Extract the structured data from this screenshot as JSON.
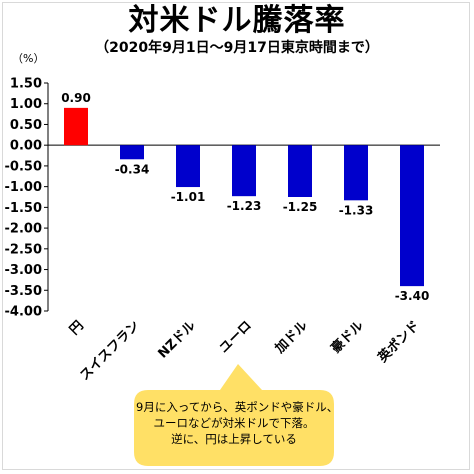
{
  "chart_data": {
    "type": "bar",
    "title": "対米ドル騰落率",
    "subtitle": "（2020年9月1日～9月17日東京時間まで）",
    "ylabel": "（%）",
    "xlabel": "",
    "ylim": [
      -4.0,
      1.5
    ],
    "yticks": [
      1.5,
      1.0,
      0.5,
      0.0,
      -0.5,
      -1.0,
      -1.5,
      -2.0,
      -2.5,
      -3.0,
      -3.5,
      -4.0
    ],
    "ytick_labels": [
      "1.50",
      "1.00",
      "0.50",
      "0.00",
      "-0.50",
      "-1.00",
      "-1.50",
      "-2.00",
      "-2.50",
      "-3.00",
      "-3.50",
      "-4.00"
    ],
    "categories": [
      "円",
      "スイスフラン",
      "NZドル",
      "ユーロ",
      "加ドル",
      "豪ドル",
      "英ポンド"
    ],
    "values": [
      0.9,
      -0.34,
      -1.01,
      -1.23,
      -1.25,
      -1.33,
      -3.4
    ],
    "value_labels": [
      "0.90",
      "-0.34",
      "-1.01",
      "-1.23",
      "-1.25",
      "-1.33",
      "-3.40"
    ],
    "bar_colors": [
      "#ff0000",
      "#0000cc",
      "#0000cc",
      "#0000cc",
      "#0000cc",
      "#0000cc",
      "#0000cc"
    ],
    "grid": false,
    "legend": "none"
  },
  "callout": {
    "lines": [
      "9月に入ってから、英ポンドや豪ドル、",
      "ユーロなどが対米ドルで下落。",
      "逆に、円は上昇している"
    ],
    "fill": "#ffe066"
  }
}
